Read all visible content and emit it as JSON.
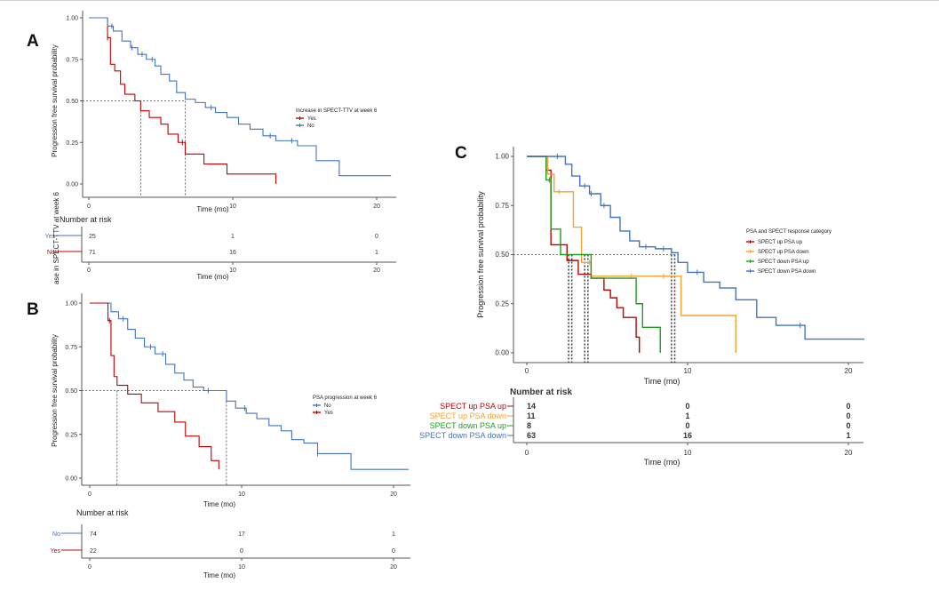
{
  "colors": {
    "blue": "#4472c4",
    "red": "#c00000",
    "orange": "#f4a430",
    "green": "#1e9e1e",
    "axis": "#555555",
    "median_line": "#444444"
  },
  "chart_data": [
    {
      "panel": "A",
      "type": "line",
      "step": true,
      "xlabel": "Time (mo)",
      "ylabel": "Progression free survival probability",
      "xlim": [
        0,
        21
      ],
      "ylim": [
        0,
        1
      ],
      "x_ticks": [
        "0",
        "10",
        "20"
      ],
      "y_ticks": [
        "0.00",
        "0.25",
        "0.50",
        "0.75",
        "1.00"
      ],
      "legend_title": "Increase in SPECT-TTV at week 6",
      "legend_position": "right",
      "medians": [
        3.6,
        6.7
      ],
      "series": [
        {
          "name": "Yes",
          "color": "red",
          "x": [
            0,
            1.3,
            1.5,
            1.8,
            2.2,
            2.5,
            3.2,
            3.6,
            4.2,
            5.0,
            5.5,
            6.2,
            6.7,
            8.0,
            9.6,
            13.0
          ],
          "y": [
            1.0,
            0.88,
            0.72,
            0.68,
            0.6,
            0.54,
            0.5,
            0.44,
            0.4,
            0.36,
            0.3,
            0.25,
            0.18,
            0.12,
            0.06,
            0.0
          ],
          "censor_x": [
            1.3,
            6.5
          ]
        },
        {
          "name": "No",
          "color": "blue",
          "x": [
            0,
            1.3,
            1.7,
            2.3,
            2.9,
            3.4,
            4.0,
            4.6,
            5.0,
            5.6,
            6.1,
            6.7,
            7.4,
            8.1,
            8.8,
            9.6,
            10.4,
            11.2,
            12.1,
            13.0,
            14.5,
            15.8,
            17.4,
            21.0
          ],
          "y": [
            1.0,
            0.95,
            0.92,
            0.86,
            0.82,
            0.78,
            0.75,
            0.71,
            0.66,
            0.62,
            0.55,
            0.51,
            0.49,
            0.46,
            0.43,
            0.4,
            0.36,
            0.33,
            0.29,
            0.26,
            0.23,
            0.14,
            0.05,
            0.05
          ],
          "censor_x": [
            1.6,
            3.0,
            3.7,
            4.4,
            8.5,
            12.6,
            14.1
          ]
        }
      ],
      "risk_table": {
        "title": "Number at risk",
        "row_axis_label": "ase in SPECT-TTV at week 6",
        "rows": [
          {
            "label": "Yes",
            "color": "blue",
            "values": [
              "25",
              "1",
              "0"
            ]
          },
          {
            "label": "No",
            "color": "red",
            "values": [
              "71",
              "16",
              "1"
            ]
          }
        ],
        "x_ticks": [
          "0",
          "10",
          "20"
        ],
        "xlabel": "Time (mo)"
      }
    },
    {
      "panel": "B",
      "type": "line",
      "step": true,
      "xlabel": "Time (mo)",
      "ylabel": "Progression free survival probability",
      "xlim": [
        0,
        21
      ],
      "ylim": [
        0,
        1
      ],
      "x_ticks": [
        "0",
        "10",
        "20"
      ],
      "y_ticks": [
        "0.00",
        "0.25",
        "0.50",
        "0.75",
        "1.00"
      ],
      "legend_title": "PSA progression at week 6",
      "legend_position": "right",
      "medians": [
        1.8,
        9.0
      ],
      "series": [
        {
          "name": "No",
          "color": "blue",
          "x": [
            0,
            1.4,
            1.9,
            2.5,
            3.0,
            3.6,
            4.3,
            5.0,
            5.6,
            6.2,
            6.8,
            7.5,
            9.0,
            9.6,
            10.3,
            11.0,
            11.8,
            12.6,
            13.3,
            14.1,
            15.0,
            17.2,
            21.0
          ],
          "y": [
            1.0,
            0.95,
            0.91,
            0.85,
            0.8,
            0.75,
            0.71,
            0.65,
            0.6,
            0.56,
            0.52,
            0.5,
            0.44,
            0.4,
            0.37,
            0.34,
            0.3,
            0.27,
            0.22,
            0.2,
            0.14,
            0.05,
            0.05
          ],
          "censor_x": [
            2.2,
            4.0,
            4.8,
            7.8,
            10.2,
            15.0
          ]
        },
        {
          "name": "Yes",
          "color": "red",
          "x": [
            0,
            1.2,
            1.4,
            1.6,
            1.8,
            2.5,
            3.4,
            4.5,
            5.6,
            6.3,
            7.2,
            8.0,
            8.5
          ],
          "y": [
            1.0,
            0.9,
            0.7,
            0.58,
            0.53,
            0.48,
            0.43,
            0.38,
            0.32,
            0.24,
            0.18,
            0.1,
            0.05
          ],
          "censor_x": [
            1.3
          ]
        }
      ],
      "risk_table": {
        "title": "Number at risk",
        "rows": [
          {
            "label": "No",
            "color": "blue",
            "values": [
              "74",
              "17",
              "1"
            ]
          },
          {
            "label": "Yes",
            "color": "red",
            "values": [
              "22",
              "0",
              "0"
            ]
          }
        ],
        "x_ticks": [
          "0",
          "10",
          "20"
        ],
        "xlabel": "Time (mo)"
      }
    },
    {
      "panel": "C",
      "type": "line",
      "step": true,
      "xlabel": "Time (mo)",
      "ylabel": "Progression free survival probability",
      "xlim": [
        0,
        21
      ],
      "ylim": [
        0,
        1
      ],
      "x_ticks": [
        "0",
        "10",
        "20"
      ],
      "y_ticks": [
        "0.00",
        "0.25",
        "0.50",
        "0.75",
        "1.00"
      ],
      "legend_title": "PSA and SPECT response category",
      "legend_position": "right",
      "medians": [
        2.6,
        2.8,
        3.6,
        3.8,
        9.0,
        9.2
      ],
      "series": [
        {
          "name": "SPECT up PSA up",
          "color": "red",
          "x": [
            0,
            1.2,
            1.5,
            2.5,
            3.2,
            4.0,
            4.8,
            5.2,
            5.6,
            6.0,
            6.8,
            7.0
          ],
          "y": [
            1.0,
            0.93,
            0.55,
            0.47,
            0.4,
            0.38,
            0.32,
            0.28,
            0.23,
            0.18,
            0.08,
            0.0
          ],
          "censor_x": [
            1.3
          ]
        },
        {
          "name": "SPECT up PSA down",
          "color": "orange",
          "x": [
            0,
            1.3,
            1.7,
            2.9,
            3.4,
            4.0,
            9.6,
            13.0
          ],
          "y": [
            1.0,
            0.91,
            0.82,
            0.64,
            0.46,
            0.39,
            0.19,
            0.0
          ],
          "censor_x": [
            2.0,
            3.9,
            6.5,
            8.5
          ]
        },
        {
          "name": "SPECT down PSA up",
          "color": "green",
          "x": [
            0,
            1.2,
            1.5,
            2.1,
            3.6,
            4.0,
            6.8,
            7.2,
            8.3
          ],
          "y": [
            1.0,
            0.88,
            0.63,
            0.5,
            0.5,
            0.38,
            0.25,
            0.13,
            0.0
          ],
          "censor_x": [
            1.4
          ]
        },
        {
          "name": "SPECT down PSA down",
          "color": "blue",
          "x": [
            0,
            2.4,
            2.8,
            3.3,
            3.9,
            4.6,
            5.2,
            5.8,
            6.4,
            7.0,
            8.0,
            9.0,
            9.4,
            10.0,
            11.0,
            12.0,
            13.0,
            14.3,
            15.5,
            17.3,
            21.0
          ],
          "y": [
            1.0,
            0.96,
            0.9,
            0.85,
            0.81,
            0.75,
            0.69,
            0.62,
            0.57,
            0.54,
            0.53,
            0.51,
            0.46,
            0.41,
            0.36,
            0.33,
            0.27,
            0.18,
            0.14,
            0.07,
            0.07
          ],
          "censor_x": [
            1.9,
            3.6,
            4.0,
            4.8,
            7.4,
            8.5,
            9.0,
            10.6,
            17.0
          ]
        }
      ],
      "risk_table": {
        "title": "Number at risk",
        "rows": [
          {
            "label": "SPECT up PSA up",
            "color": "red",
            "values": [
              "14",
              "0",
              "0"
            ]
          },
          {
            "label": "SPECT up PSA down",
            "color": "orange",
            "values": [
              "11",
              "1",
              "0"
            ]
          },
          {
            "label": "SPECT down PSA up",
            "color": "green",
            "values": [
              "8",
              "0",
              "0"
            ]
          },
          {
            "label": "SPECT down PSA down",
            "color": "blue",
            "values": [
              "63",
              "16",
              "1"
            ]
          }
        ],
        "x_ticks": [
          "0",
          "10",
          "20"
        ],
        "xlabel": "Time (mo)"
      }
    }
  ]
}
